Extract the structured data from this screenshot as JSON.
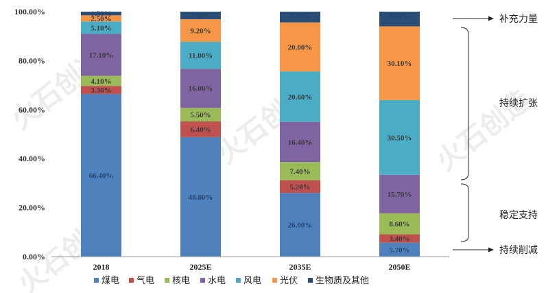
{
  "chart_data": {
    "type": "bar",
    "stacked": true,
    "title": "",
    "xlabel": "",
    "ylabel": "",
    "ylim": [
      0,
      100
    ],
    "y_ticks": [
      "0.00%",
      "20.00%",
      "40.00%",
      "60.00%",
      "80.00%",
      "100.00%"
    ],
    "categories": [
      "2018",
      "2025E",
      "2035E",
      "2050E"
    ],
    "series": [
      {
        "name": "煤电",
        "color": "#4f81bd",
        "values": [
          66.4,
          48.8,
          26.0,
          5.7
        ],
        "labels": [
          "66.40%",
          "48.80%",
          "26.00%",
          "5.70%"
        ]
      },
      {
        "name": "气电",
        "color": "#c0504d",
        "values": [
          3.3,
          6.4,
          5.2,
          3.4
        ],
        "labels": [
          "3.30%",
          "6.40%",
          "5.20%",
          "3.40%"
        ]
      },
      {
        "name": "核电",
        "color": "#9bbb59",
        "values": [
          4.1,
          5.5,
          7.4,
          8.6
        ],
        "labels": [
          "4.10%",
          "5.50%",
          "7.40%",
          "8.60%"
        ]
      },
      {
        "name": "水电",
        "color": "#8064a2",
        "values": [
          17.1,
          16.0,
          16.4,
          15.7
        ],
        "labels": [
          "17.10%",
          "16.00%",
          "16.40%",
          "15.70%"
        ]
      },
      {
        "name": "风电",
        "color": "#4bacc6",
        "values": [
          5.1,
          11.0,
          20.6,
          30.5
        ],
        "labels": [
          "5.10%",
          "11.00%",
          "20.60%",
          "30.50%"
        ]
      },
      {
        "name": "光伏",
        "color": "#f79646",
        "values": [
          2.5,
          9.2,
          20.0,
          30.1
        ],
        "labels": [
          "2.50%",
          "9.20%",
          "20.00%",
          "30.10%"
        ]
      },
      {
        "name": "生物质及其他",
        "color": "#2c4d75",
        "values": [
          1.5,
          3.1,
          4.4,
          6.0
        ],
        "labels": [
          "1.50%",
          "3.10%",
          "4.40%",
          "6.00%"
        ]
      }
    ],
    "legend_position": "bottom",
    "annotations": [
      "补充力量",
      "持续扩张",
      "稳定支持",
      "持续削减"
    ],
    "watermark": "火石创造"
  }
}
